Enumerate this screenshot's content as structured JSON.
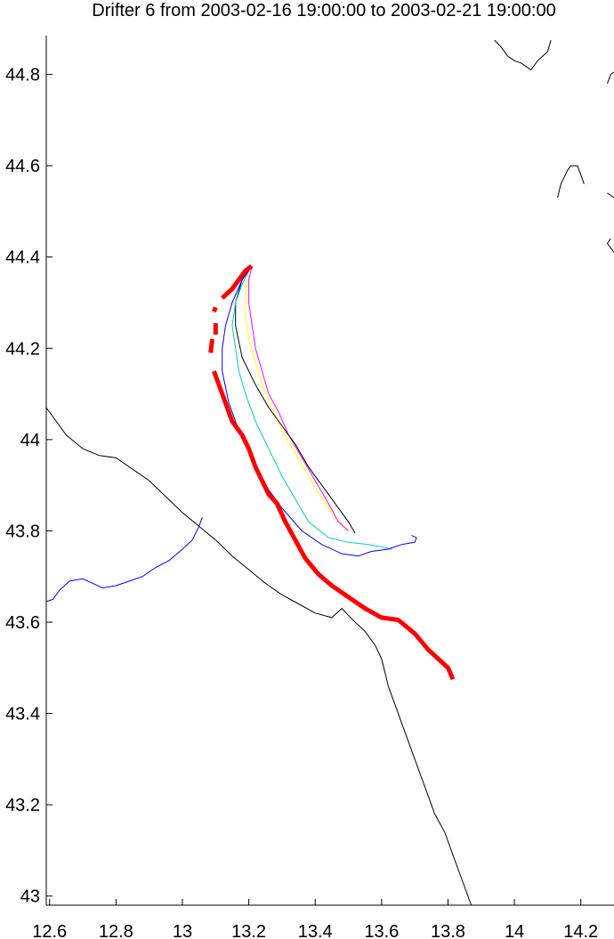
{
  "chart_data": {
    "type": "line",
    "title": "Drifter 6 from 2003-02-16 19:00:00 to 2003-02-21 19:00:00",
    "xlabel": "",
    "ylabel": "",
    "xlim": [
      12.59,
      14.3
    ],
    "ylim": [
      42.98,
      44.885
    ],
    "x_ticks": [
      12.6,
      12.8,
      13,
      13.2,
      13.4,
      13.6,
      13.8,
      14,
      14.2
    ],
    "x_tick_labels": [
      "12.6",
      "12.8",
      "13",
      "13.2",
      "13.4",
      "13.6",
      "13.8",
      "14",
      "14.2"
    ],
    "y_ticks": [
      43,
      43.2,
      43.4,
      43.6,
      43.8,
      44,
      44.2,
      44.4,
      44.6,
      44.8
    ],
    "y_tick_labels": [
      "43",
      "43.2",
      "43.4",
      "43.6",
      "43.8",
      "44",
      "44.2",
      "44.4",
      "44.6",
      "44.8"
    ],
    "grid": false,
    "series": [
      {
        "color": "#ff0000",
        "width": 5,
        "segments": [
          [
            [
              13.208,
              44.38
            ],
            [
              13.19,
              44.37
            ],
            [
              13.17,
              44.35
            ],
            [
              13.15,
              44.33
            ],
            [
              13.12,
              44.31
            ]
          ],
          [
            [
              13.1,
              44.29
            ],
            [
              13.095,
              44.28
            ]
          ],
          [
            [
              13.1,
              44.255
            ],
            [
              13.1,
              44.23
            ]
          ],
          [
            [
              13.09,
              44.22
            ],
            [
              13.085,
              44.19
            ]
          ],
          [
            [
              13.095,
              44.15
            ],
            [
              13.11,
              44.12
            ],
            [
              13.13,
              44.08
            ],
            [
              13.15,
              44.04
            ],
            [
              13.18,
              44.01
            ],
            [
              13.2,
              43.98
            ],
            [
              13.22,
              43.94
            ],
            [
              13.24,
              43.91
            ],
            [
              13.26,
              43.88
            ],
            [
              13.285,
              43.86
            ],
            [
              13.31,
              43.82
            ],
            [
              13.34,
              43.78
            ],
            [
              13.37,
              43.74
            ],
            [
              13.41,
              43.705
            ],
            [
              13.45,
              43.68
            ],
            [
              13.5,
              43.655
            ],
            [
              13.55,
              43.63
            ],
            [
              13.6,
              43.61
            ],
            [
              13.65,
              43.605
            ],
            [
              13.7,
              43.575
            ],
            [
              13.74,
              43.54
            ],
            [
              13.77,
              43.52
            ],
            [
              13.8,
              43.5
            ],
            [
              13.815,
              43.475
            ]
          ]
        ]
      },
      {
        "color": "#0000ff",
        "width": 1,
        "segments": [
          [
            [
              13.21,
              44.38
            ],
            [
              13.18,
              44.35
            ],
            [
              13.15,
              44.3
            ],
            [
              13.13,
              44.25
            ],
            [
              13.12,
              44.2
            ],
            [
              13.12,
              44.15
            ],
            [
              13.14,
              44.08
            ],
            [
              13.17,
              44.02
            ],
            [
              13.21,
              43.96
            ],
            [
              13.25,
              43.9
            ],
            [
              13.3,
              43.85
            ],
            [
              13.36,
              43.8
            ],
            [
              13.42,
              43.77
            ],
            [
              13.48,
              43.75
            ],
            [
              13.53,
              43.745
            ],
            [
              13.57,
              43.755
            ],
            [
              13.62,
              43.76
            ],
            [
              13.66,
              43.77
            ],
            [
              13.7,
              43.775
            ],
            [
              13.705,
              43.785
            ],
            [
              13.69,
              43.79
            ]
          ]
        ]
      },
      {
        "color": "#00cccc",
        "width": 1,
        "segments": [
          [
            [
              13.2,
              44.37
            ],
            [
              13.18,
              44.34
            ],
            [
              13.16,
              44.3
            ],
            [
              13.15,
              44.25
            ],
            [
              13.16,
              44.2
            ],
            [
              13.17,
              44.15
            ],
            [
              13.19,
              44.1
            ],
            [
              13.22,
              44.04
            ],
            [
              13.26,
              43.98
            ],
            [
              13.3,
              43.92
            ],
            [
              13.34,
              43.87
            ],
            [
              13.38,
              43.82
            ],
            [
              13.44,
              43.785
            ],
            [
              13.5,
              43.775
            ],
            [
              13.56,
              43.77
            ],
            [
              13.6,
              43.765
            ],
            [
              13.63,
              43.76
            ]
          ]
        ]
      },
      {
        "color": "#000000",
        "width": 1,
        "segments": [
          [
            [
              13.21,
              44.38
            ],
            [
              13.18,
              44.35
            ],
            [
              13.16,
              44.3
            ],
            [
              13.16,
              44.25
            ],
            [
              13.18,
              44.18
            ],
            [
              13.22,
              44.12
            ],
            [
              13.26,
              44.07
            ],
            [
              13.3,
              44.03
            ],
            [
              13.34,
              43.99
            ],
            [
              13.38,
              43.94
            ],
            [
              13.42,
              43.9
            ],
            [
              13.46,
              43.86
            ],
            [
              13.5,
              43.82
            ],
            [
              13.52,
              43.795
            ]
          ]
        ]
      },
      {
        "color": "#ff00ff",
        "width": 1,
        "segments": [
          [
            [
              13.21,
              44.38
            ],
            [
              13.2,
              44.35
            ],
            [
              13.2,
              44.3
            ],
            [
              13.21,
              44.25
            ],
            [
              13.22,
              44.2
            ],
            [
              13.24,
              44.15
            ],
            [
              13.26,
              44.1
            ],
            [
              13.29,
              44.06
            ],
            [
              13.32,
              44.01
            ],
            [
              13.36,
              43.96
            ],
            [
              13.4,
              43.91
            ],
            [
              13.44,
              43.86
            ],
            [
              13.47,
              43.82
            ],
            [
              13.5,
              43.8
            ]
          ]
        ]
      },
      {
        "color": "#ffff00",
        "width": 1,
        "segments": [
          [
            [
              13.2,
              44.37
            ],
            [
              13.19,
              44.32
            ],
            [
              13.19,
              44.27
            ],
            [
              13.2,
              44.22
            ],
            [
              13.22,
              44.17
            ],
            [
              13.24,
              44.12
            ],
            [
              13.27,
              44.07
            ],
            [
              13.3,
              44.02
            ],
            [
              13.34,
              43.97
            ],
            [
              13.38,
              43.92
            ],
            [
              13.42,
              43.87
            ],
            [
              13.46,
              43.83
            ],
            [
              13.5,
              43.8
            ]
          ]
        ]
      }
    ],
    "coastline": {
      "color": "#000000",
      "segments": [
        [
          [
            12.59,
            44.07
          ],
          [
            12.65,
            44.01
          ],
          [
            12.7,
            43.98
          ],
          [
            12.75,
            43.965
          ],
          [
            12.8,
            43.96
          ],
          [
            12.85,
            43.935
          ],
          [
            12.9,
            43.91
          ],
          [
            12.95,
            43.875
          ],
          [
            13.0,
            43.84
          ],
          [
            13.05,
            43.81
          ],
          [
            13.1,
            43.78
          ],
          [
            13.15,
            43.745
          ],
          [
            13.2,
            43.715
          ],
          [
            13.25,
            43.685
          ],
          [
            13.3,
            43.66
          ],
          [
            13.35,
            43.64
          ],
          [
            13.4,
            43.62
          ],
          [
            13.45,
            43.61
          ],
          [
            13.48,
            43.63
          ],
          [
            13.5,
            43.615
          ],
          [
            13.52,
            43.6
          ],
          [
            13.55,
            43.58
          ],
          [
            13.58,
            43.55
          ],
          [
            13.6,
            43.52
          ],
          [
            13.61,
            43.49
          ],
          [
            13.62,
            43.46
          ],
          [
            13.64,
            43.42
          ],
          [
            13.66,
            43.38
          ],
          [
            13.68,
            43.34
          ],
          [
            13.7,
            43.3
          ],
          [
            13.72,
            43.26
          ],
          [
            13.74,
            43.22
          ],
          [
            13.76,
            43.18
          ],
          [
            13.79,
            43.14
          ],
          [
            13.81,
            43.1
          ],
          [
            13.83,
            43.06
          ],
          [
            13.85,
            43.02
          ],
          [
            13.87,
            42.98
          ]
        ],
        [
          [
            13.94,
            44.875
          ],
          [
            13.96,
            44.86
          ],
          [
            13.98,
            44.84
          ],
          [
            14.0,
            44.83
          ],
          [
            14.02,
            44.825
          ],
          [
            14.04,
            44.815
          ],
          [
            14.05,
            44.81
          ],
          [
            14.07,
            44.83
          ],
          [
            14.1,
            44.85
          ],
          [
            14.11,
            44.875
          ]
        ],
        [
          [
            14.13,
            44.53
          ],
          [
            14.14,
            44.56
          ],
          [
            14.16,
            44.59
          ],
          [
            14.17,
            44.6
          ],
          [
            14.19,
            44.6
          ],
          [
            14.2,
            44.58
          ],
          [
            14.21,
            44.56
          ]
        ],
        [
          [
            14.28,
            44.54
          ],
          [
            14.3,
            44.53
          ]
        ],
        [
          [
            14.29,
            44.44
          ],
          [
            14.28,
            44.43
          ],
          [
            14.29,
            44.42
          ],
          [
            14.3,
            44.41
          ]
        ],
        [
          [
            14.28,
            44.78
          ],
          [
            14.29,
            44.8
          ],
          [
            14.3,
            44.805
          ]
        ]
      ]
    },
    "river": {
      "color": "#0000ff",
      "segments": [
        [
          [
            12.59,
            43.645
          ],
          [
            12.61,
            43.65
          ],
          [
            12.63,
            43.67
          ],
          [
            12.66,
            43.69
          ],
          [
            12.7,
            43.695
          ],
          [
            12.73,
            43.685
          ],
          [
            12.76,
            43.675
          ],
          [
            12.8,
            43.68
          ],
          [
            12.84,
            43.69
          ],
          [
            12.88,
            43.7
          ],
          [
            12.92,
            43.72
          ],
          [
            12.96,
            43.735
          ],
          [
            13.0,
            43.76
          ],
          [
            13.03,
            43.78
          ],
          [
            13.05,
            43.81
          ],
          [
            13.06,
            43.83
          ]
        ]
      ]
    }
  }
}
